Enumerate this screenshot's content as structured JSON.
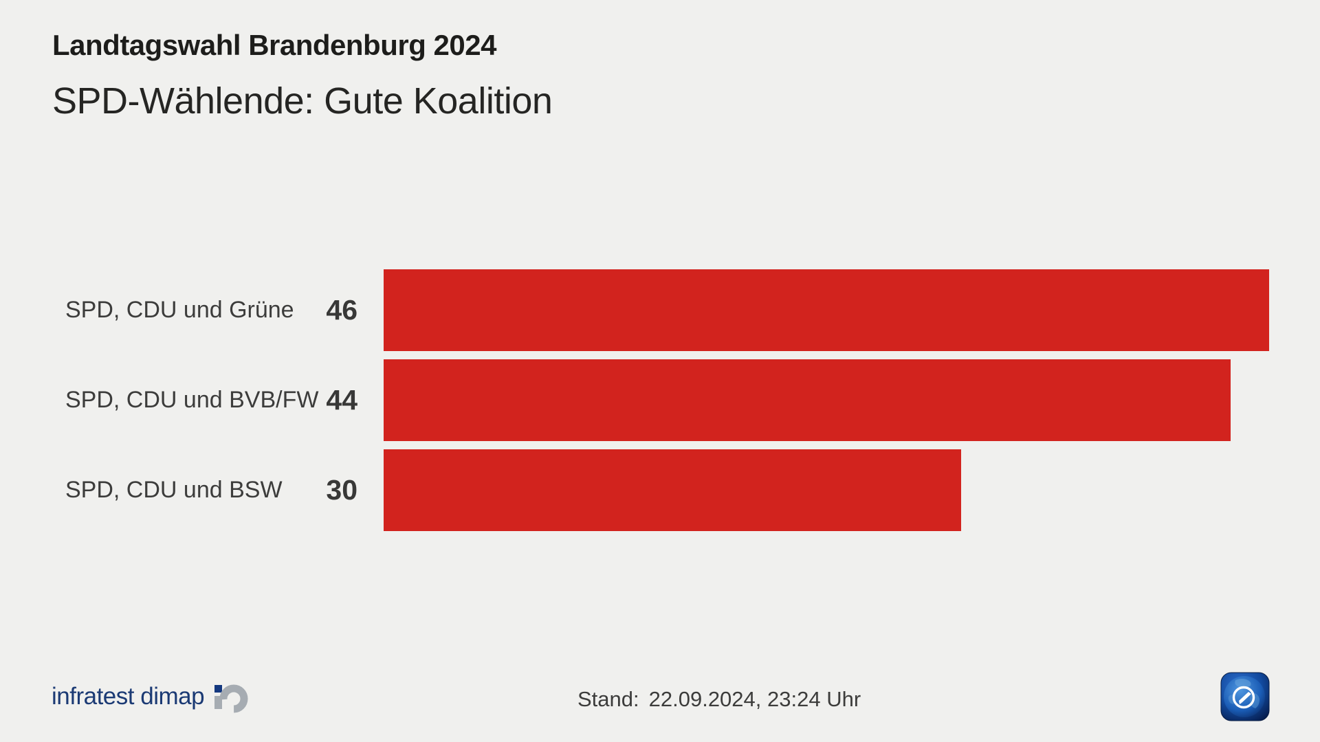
{
  "header": {
    "title": "Landtagswahl Brandenburg 2024",
    "subtitle": "SPD-Wählende: Gute Koalition"
  },
  "chart_data": {
    "type": "bar",
    "orientation": "horizontal",
    "title": "SPD-Wählende: Gute Koalition",
    "categories": [
      "SPD, CDU und Grüne",
      "SPD, CDU und BVB/FW",
      "SPD, CDU und BSW"
    ],
    "values": [
      46,
      44,
      30
    ],
    "bar_color": "#d2231e",
    "xlim": [
      0,
      48.6
    ],
    "grid": false,
    "legend": false,
    "value_label_position": "left-of-bar"
  },
  "footer": {
    "source": "infratest dimap",
    "stand_label": "Stand:",
    "stand_value": "22.09.2024, 23:24 Uhr"
  },
  "colors": {
    "background": "#f0f0ee",
    "bar": "#d2231e",
    "title_text": "#1d1d1b",
    "label_text": "#3c3c3b",
    "infratest_blue": "#1b3a74",
    "infratest_gray": "#a6acb2"
  }
}
